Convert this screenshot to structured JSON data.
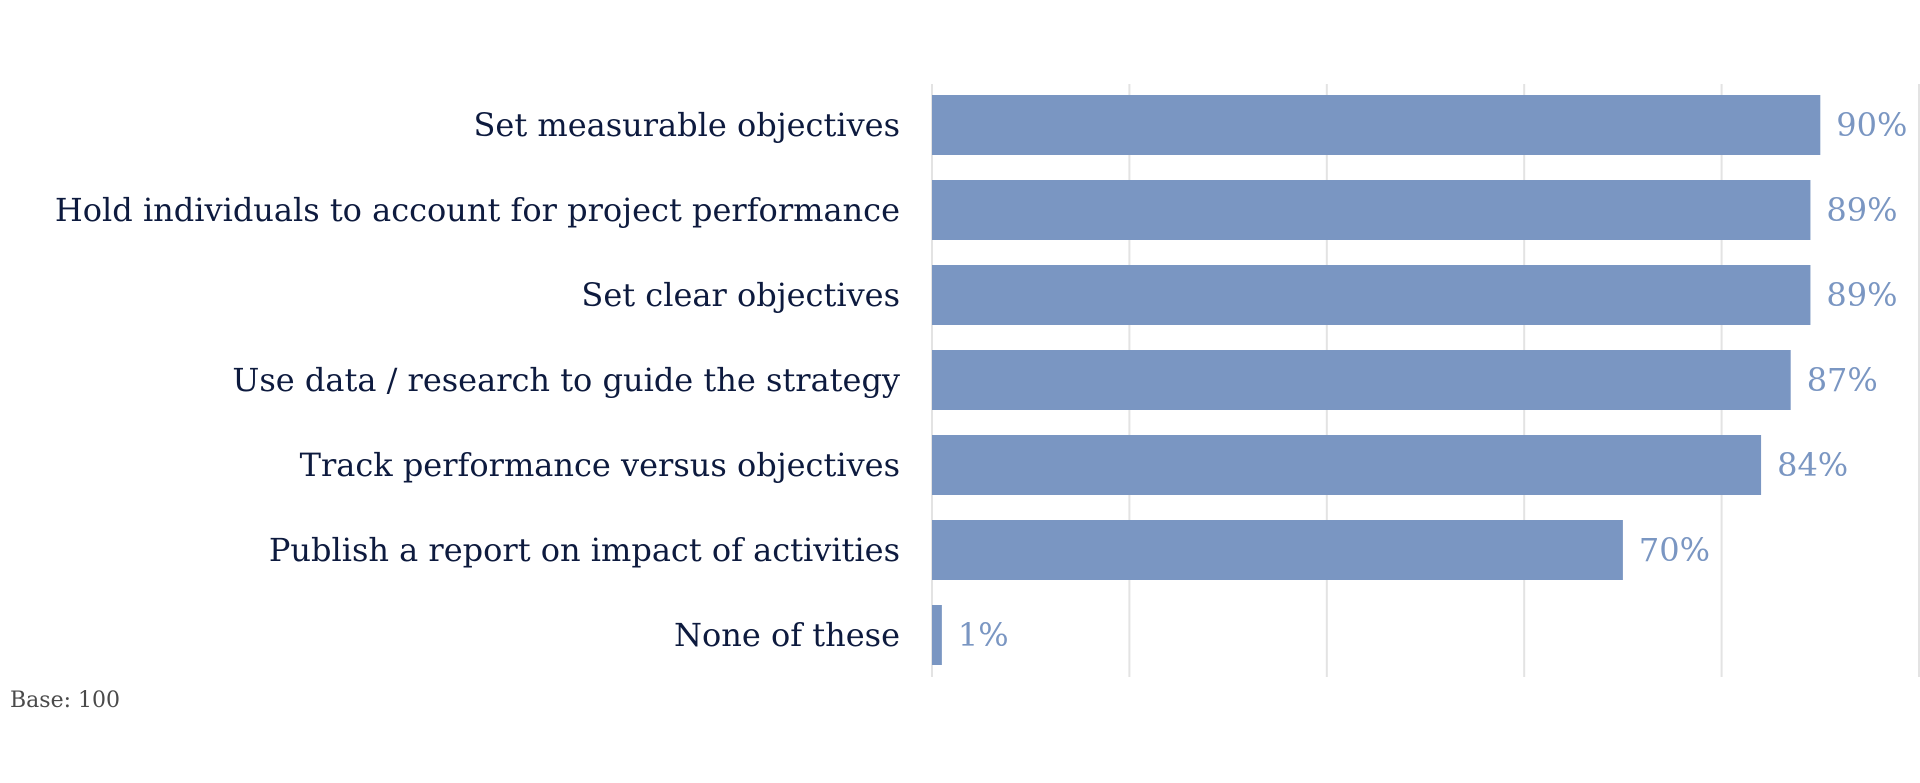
{
  "chart_data": {
    "type": "bar",
    "orientation": "horizontal",
    "categories": [
      "Set measurable objectives",
      "Hold individuals to account for project performance",
      "Set clear objectives",
      "Use data / research to guide the strategy",
      "Track performance versus objectives",
      "Publish a report on impact of activities",
      "None of these"
    ],
    "values": [
      90,
      89,
      89,
      87,
      84,
      70,
      1
    ],
    "value_labels": [
      "90%",
      "89%",
      "89%",
      "87%",
      "84%",
      "70%",
      "1%"
    ],
    "xlim": [
      0,
      100
    ],
    "grid": true,
    "title": "",
    "xlabel": "",
    "ylabel": ""
  },
  "colors": {
    "bar": "#7a96c2",
    "value_label": "#7a96c2",
    "category_label": "#0d1a3e",
    "grid": "#e3e3e3"
  },
  "footnote": "Base: 100"
}
